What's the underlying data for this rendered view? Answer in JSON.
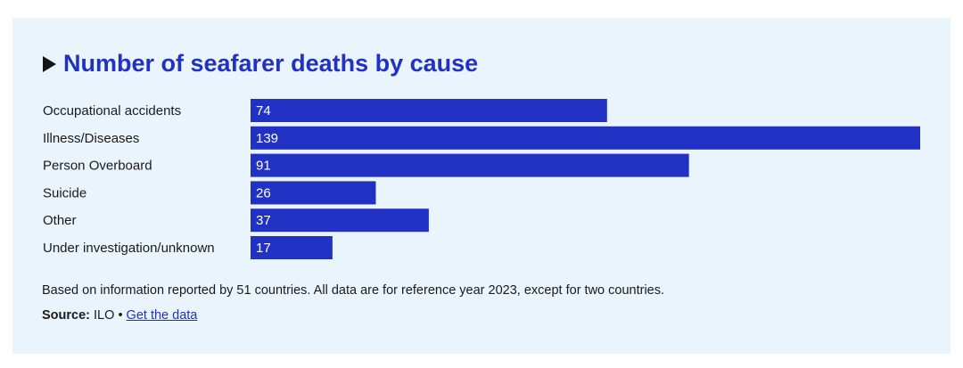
{
  "header": {
    "title": "Number of seafarer deaths by cause"
  },
  "chart_data": {
    "type": "bar",
    "orientation": "horizontal",
    "title": "Number of seafarer deaths by cause",
    "categories": [
      "Occupational accidents",
      "Illness/Diseases",
      "Person Overboard",
      "Suicide",
      "Other",
      "Under investigation/unknown"
    ],
    "values": [
      74,
      139,
      91,
      26,
      37,
      17
    ],
    "xlim": [
      0,
      139
    ],
    "grid": false,
    "legend": "none",
    "data_labels": "inside-left",
    "bar_color": "#2131c4"
  },
  "footer": {
    "note": "Based on information reported by 51 countries. All data are for reference year 2023, except for two countries.",
    "source_label": "Source:",
    "source_value": "ILO",
    "separator": "•",
    "link_text": "Get the data"
  },
  "colors": {
    "background": "#eaf4fc",
    "accent": "#2131c4",
    "text": "#1a1a1a"
  }
}
